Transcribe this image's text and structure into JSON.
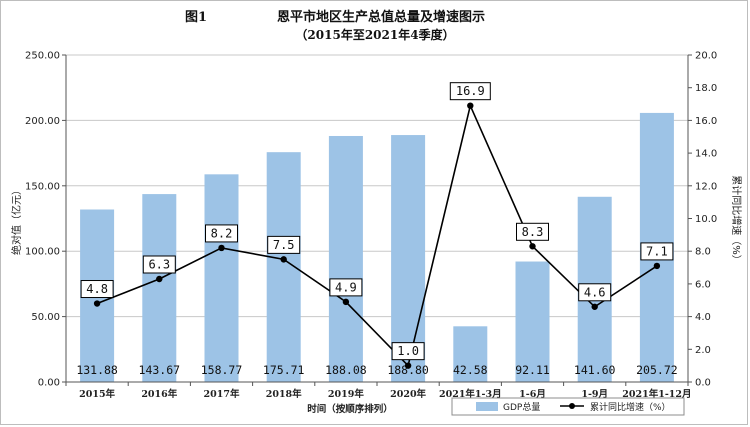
{
  "chart_data": {
    "type": "bar+line",
    "figure_label": "图1",
    "title": "恩平市地区生产总值总量及增速图示",
    "subtitle": "（2015年至2021年4季度）",
    "categories": [
      "2015年",
      "2016年",
      "2017年",
      "2018年",
      "2019年",
      "2020年",
      "2021年1-3月",
      "1-6月",
      "1-9月",
      "2021年1-12月"
    ],
    "series": [
      {
        "name": "GDP总量",
        "type": "bar",
        "axis": "left",
        "color": "#9dc3e6",
        "values": [
          131.88,
          143.67,
          158.77,
          175.71,
          188.08,
          188.8,
          42.58,
          92.11,
          141.6,
          205.72
        ],
        "labels": [
          "131.88",
          "143.67",
          "158.77",
          "175.71",
          "188.08",
          "188.80",
          "42.58",
          "92.11",
          "141.60",
          "205.72"
        ]
      },
      {
        "name": "累计同比增速（%）",
        "type": "line",
        "axis": "right",
        "color": "#000000",
        "values": [
          4.8,
          6.3,
          8.2,
          7.5,
          4.9,
          1.0,
          16.9,
          8.3,
          4.6,
          7.1
        ],
        "labels": [
          "4.8",
          "6.3",
          "8.2",
          "7.5",
          "4.9",
          "1.0",
          "16.9",
          "8.3",
          "4.6",
          "7.1"
        ]
      }
    ],
    "xlabel": "时间（按顺序排列）",
    "ylabel_left": "绝对值（亿元）",
    "ylabel_right": "累计同比增速（%）",
    "ylim_left": [
      0,
      250
    ],
    "ylim_right": [
      0,
      20
    ],
    "yticks_left": [
      "0.00",
      "50.00",
      "100.00",
      "150.00",
      "200.00",
      "250.00"
    ],
    "yticks_right": [
      "0.0",
      "2.0",
      "4.0",
      "6.0",
      "8.0",
      "10.0",
      "12.0",
      "14.0",
      "16.0",
      "18.0",
      "20.0"
    ],
    "legend_position": "bottom-right"
  }
}
